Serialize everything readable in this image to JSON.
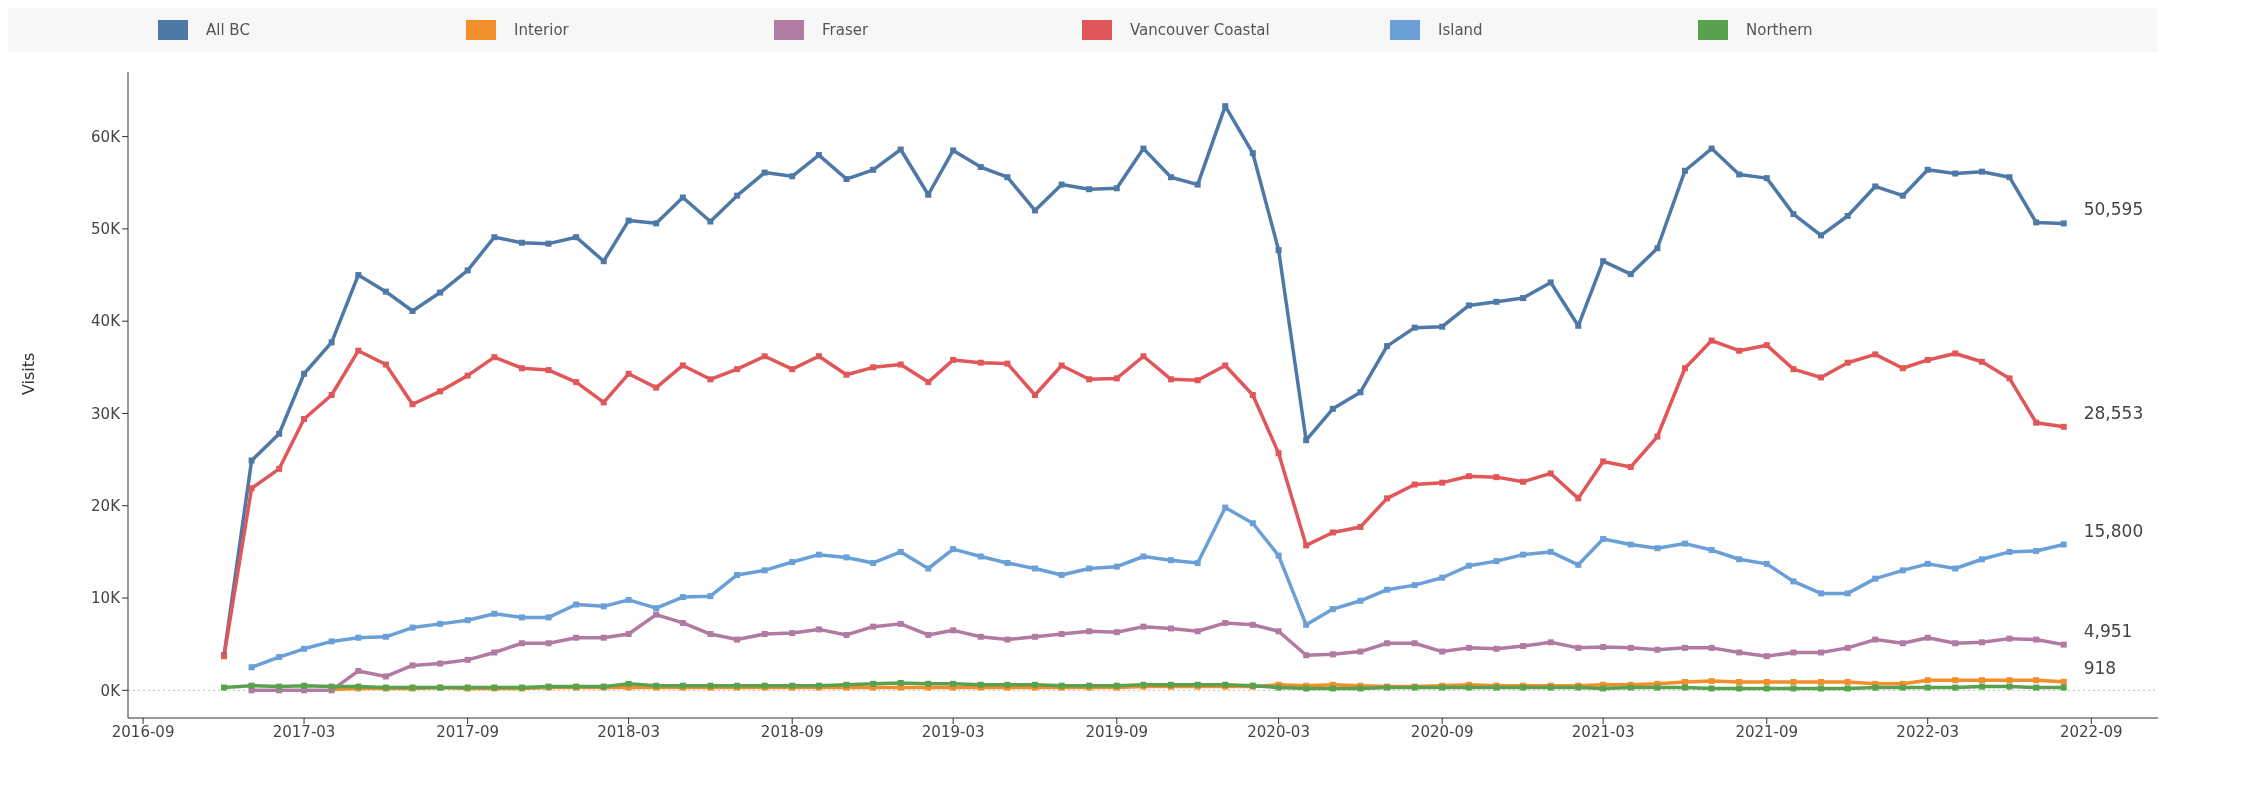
{
  "chart_data": {
    "type": "line",
    "ylabel": "Visits",
    "legend": "top",
    "marker": "square",
    "line_style": "solid",
    "x": [
      "2016-12",
      "2017-01",
      "2017-02",
      "2017-03",
      "2017-04",
      "2017-05",
      "2017-06",
      "2017-07",
      "2017-08",
      "2017-09",
      "2017-10",
      "2017-11",
      "2017-12",
      "2018-01",
      "2018-02",
      "2018-03",
      "2018-04",
      "2018-05",
      "2018-06",
      "2018-07",
      "2018-08",
      "2018-09",
      "2018-10",
      "2018-11",
      "2018-12",
      "2019-01",
      "2019-02",
      "2019-03",
      "2019-04",
      "2019-05",
      "2019-06",
      "2019-07",
      "2019-08",
      "2019-09",
      "2019-10",
      "2019-11",
      "2019-12",
      "2020-01",
      "2020-02",
      "2020-03",
      "2020-04",
      "2020-05",
      "2020-06",
      "2020-07",
      "2020-08",
      "2020-09",
      "2020-10",
      "2020-11",
      "2020-12",
      "2021-01",
      "2021-02",
      "2021-03",
      "2021-04",
      "2021-05",
      "2021-06",
      "2021-07",
      "2021-08",
      "2021-09",
      "2021-10",
      "2021-11",
      "2021-12",
      "2022-01",
      "2022-02",
      "2022-03",
      "2022-04",
      "2022-05",
      "2022-06",
      "2022-07",
      "2022-08"
    ],
    "xlim": [
      "2016-08-15",
      "2022-11-15"
    ],
    "xticks": [
      "2016-09",
      "2017-03",
      "2017-09",
      "2018-03",
      "2018-09",
      "2019-03",
      "2019-09",
      "2020-03",
      "2020-09",
      "2021-03",
      "2021-09",
      "2022-03",
      "2022-09"
    ],
    "ylim": [
      -3000,
      67000
    ],
    "yticks": [
      {
        "value": 0,
        "label": "0K"
      },
      {
        "value": 10000,
        "label": "10K"
      },
      {
        "value": 20000,
        "label": "20K"
      },
      {
        "value": 30000,
        "label": "30K"
      },
      {
        "value": 40000,
        "label": "40K"
      },
      {
        "value": 50000,
        "label": "50K"
      },
      {
        "value": 60000,
        "label": "60K"
      }
    ],
    "ref_lines": [
      {
        "axis": "y",
        "value": 0,
        "color": "#bbbbbb",
        "line_style": "dotted"
      }
    ],
    "series": [
      {
        "name": "All BC",
        "color": "#4e79a7",
        "values": [
          3800,
          24900,
          27800,
          34300,
          37700,
          45000,
          43200,
          41100,
          43100,
          45500,
          49100,
          48500,
          48400,
          49100,
          46500,
          50900,
          50600,
          53400,
          50800,
          53600,
          56100,
          55700,
          58000,
          55400,
          56400,
          58600,
          53700,
          58500,
          56700,
          55600,
          52000,
          54800,
          54300,
          54400,
          58700,
          55600,
          54800,
          63300,
          58200,
          47700,
          27100,
          30500,
          32300,
          37300,
          39300,
          39400,
          41700,
          42100,
          42500,
          44200,
          39500,
          46500,
          45100,
          47900,
          56300,
          58700,
          55900,
          55500,
          51600,
          49300,
          51400,
          54600,
          53600,
          56400,
          56000,
          56200,
          55600,
          50700,
          50595
        ],
        "value_labels": [
          null,
          null,
          null,
          null,
          null,
          null,
          null,
          null,
          null,
          null,
          null,
          null,
          null,
          null,
          null,
          null,
          null,
          null,
          null,
          null,
          null,
          null,
          null,
          null,
          null,
          null,
          null,
          null,
          null,
          null,
          null,
          null,
          null,
          null,
          null,
          null,
          null,
          null,
          null,
          null,
          null,
          null,
          null,
          null,
          null,
          null,
          null,
          null,
          null,
          null,
          null,
          null,
          null,
          null,
          null,
          null,
          null,
          null,
          null,
          null,
          null,
          null,
          null,
          null,
          null,
          null,
          null,
          null,
          "50,595"
        ]
      },
      {
        "name": "Interior",
        "color": "#f28e2b",
        "values": [
          null,
          null,
          null,
          null,
          100,
          200,
          200,
          200,
          300,
          200,
          200,
          200,
          300,
          300,
          300,
          300,
          300,
          300,
          300,
          300,
          300,
          300,
          300,
          300,
          300,
          300,
          300,
          300,
          300,
          300,
          300,
          300,
          300,
          300,
          400,
          400,
          400,
          400,
          400,
          600,
          500,
          600,
          500,
          400,
          400,
          500,
          600,
          500,
          500,
          500,
          500,
          600,
          600,
          700,
          900,
          1000,
          900,
          900,
          900,
          900,
          900,
          700,
          700,
          1100,
          1100,
          1100,
          1100,
          1100,
          918
        ],
        "value_labels": [
          null,
          null,
          null,
          null,
          null,
          null,
          null,
          null,
          null,
          null,
          null,
          null,
          null,
          null,
          null,
          null,
          null,
          null,
          null,
          null,
          null,
          null,
          null,
          null,
          null,
          null,
          null,
          null,
          null,
          null,
          null,
          null,
          null,
          null,
          null,
          null,
          null,
          null,
          null,
          null,
          null,
          null,
          null,
          null,
          null,
          null,
          null,
          null,
          null,
          null,
          null,
          null,
          null,
          null,
          null,
          null,
          null,
          null,
          null,
          null,
          null,
          null,
          null,
          null,
          null,
          null,
          null,
          null,
          "918"
        ]
      },
      {
        "name": "Fraser",
        "color": "#b07aa1",
        "values": [
          null,
          0,
          0,
          0,
          0,
          2100,
          1500,
          2700,
          2900,
          3300,
          4100,
          5100,
          5100,
          5700,
          5700,
          6100,
          8200,
          7300,
          6100,
          5500,
          6100,
          6200,
          6600,
          6000,
          6900,
          7200,
          6000,
          6500,
          5800,
          5500,
          5800,
          6100,
          6400,
          6300,
          6900,
          6700,
          6400,
          7300,
          7100,
          6400,
          3800,
          3900,
          4200,
          5100,
          5100,
          4200,
          4600,
          4500,
          4800,
          5200,
          4600,
          4700,
          4600,
          4400,
          4600,
          4600,
          4100,
          3700,
          4100,
          4100,
          4600,
          5500,
          5100,
          5700,
          5100,
          5200,
          5600,
          5500,
          4951
        ],
        "value_labels": [
          null,
          null,
          null,
          null,
          null,
          null,
          null,
          null,
          null,
          null,
          null,
          null,
          null,
          null,
          null,
          null,
          null,
          null,
          null,
          null,
          null,
          null,
          null,
          null,
          null,
          null,
          null,
          null,
          null,
          null,
          null,
          null,
          null,
          null,
          null,
          null,
          null,
          null,
          null,
          null,
          null,
          null,
          null,
          null,
          null,
          null,
          null,
          null,
          null,
          null,
          null,
          null,
          null,
          null,
          null,
          null,
          null,
          null,
          null,
          null,
          null,
          null,
          null,
          null,
          null,
          null,
          null,
          null,
          "4,951"
        ]
      },
      {
        "name": "Vancouver Coastal",
        "color": "#e15759",
        "values": [
          3700,
          21900,
          24000,
          29400,
          32000,
          36800,
          35300,
          31000,
          32400,
          34100,
          36100,
          34900,
          34700,
          33400,
          31200,
          34300,
          32800,
          35200,
          33700,
          34800,
          36200,
          34800,
          36200,
          34200,
          35000,
          35300,
          33400,
          35800,
          35500,
          35400,
          32000,
          35200,
          33700,
          33800,
          36200,
          33700,
          33600,
          35200,
          32000,
          25700,
          15700,
          17100,
          17700,
          20800,
          22300,
          22500,
          23200,
          23100,
          22600,
          23500,
          20800,
          24800,
          24200,
          27500,
          34900,
          37900,
          36800,
          37400,
          34800,
          33900,
          35500,
          36400,
          34900,
          35800,
          36500,
          35600,
          33800,
          29000,
          28553
        ],
        "value_labels": [
          null,
          null,
          null,
          null,
          null,
          null,
          null,
          null,
          null,
          null,
          null,
          null,
          null,
          null,
          null,
          null,
          null,
          null,
          null,
          null,
          null,
          null,
          null,
          null,
          null,
          null,
          null,
          null,
          null,
          null,
          null,
          null,
          null,
          null,
          null,
          null,
          null,
          null,
          null,
          null,
          null,
          null,
          null,
          null,
          null,
          null,
          null,
          null,
          null,
          null,
          null,
          null,
          null,
          null,
          null,
          null,
          null,
          null,
          null,
          null,
          null,
          null,
          null,
          null,
          null,
          null,
          null,
          null,
          "28,553"
        ]
      },
      {
        "name": "Island",
        "color": "#6a9fd8",
        "values": [
          null,
          2500,
          3600,
          4500,
          5300,
          5700,
          5800,
          6800,
          7200,
          7600,
          8300,
          7900,
          7900,
          9300,
          9100,
          9800,
          8900,
          10100,
          10200,
          12500,
          13000,
          13900,
          14700,
          14400,
          13800,
          15000,
          13200,
          15300,
          14500,
          13800,
          13200,
          12500,
          13200,
          13400,
          14500,
          14100,
          13800,
          19800,
          18100,
          14600,
          7100,
          8800,
          9700,
          10900,
          11400,
          12200,
          13500,
          14000,
          14700,
          15000,
          13600,
          16400,
          15800,
          15400,
          15900,
          15200,
          14200,
          13700,
          11800,
          10500,
          10500,
          12100,
          13000,
          13700,
          13200,
          14200,
          15000,
          15100,
          15800
        ],
        "value_labels": [
          null,
          null,
          null,
          null,
          null,
          null,
          null,
          null,
          null,
          null,
          null,
          null,
          null,
          null,
          null,
          null,
          null,
          null,
          null,
          null,
          null,
          null,
          null,
          null,
          null,
          null,
          null,
          null,
          null,
          null,
          null,
          null,
          null,
          null,
          null,
          null,
          null,
          null,
          null,
          null,
          null,
          null,
          null,
          null,
          null,
          null,
          null,
          null,
          null,
          null,
          null,
          null,
          null,
          null,
          null,
          null,
          null,
          null,
          null,
          null,
          null,
          null,
          null,
          null,
          null,
          null,
          null,
          null,
          "15,800"
        ]
      },
      {
        "name": "Northern",
        "color": "#59a14f",
        "values": [
          300,
          500,
          400,
          500,
          400,
          400,
          300,
          300,
          300,
          300,
          300,
          300,
          400,
          400,
          400,
          700,
          500,
          500,
          500,
          500,
          500,
          500,
          500,
          600,
          700,
          800,
          700,
          700,
          600,
          600,
          600,
          500,
          500,
          500,
          600,
          600,
          600,
          600,
          500,
          300,
          200,
          200,
          200,
          300,
          300,
          300,
          300,
          300,
          300,
          300,
          300,
          200,
          300,
          300,
          300,
          200,
          200,
          200,
          200,
          200,
          200,
          300,
          300,
          300,
          300,
          400,
          400,
          300,
          300
        ]
      }
    ]
  }
}
